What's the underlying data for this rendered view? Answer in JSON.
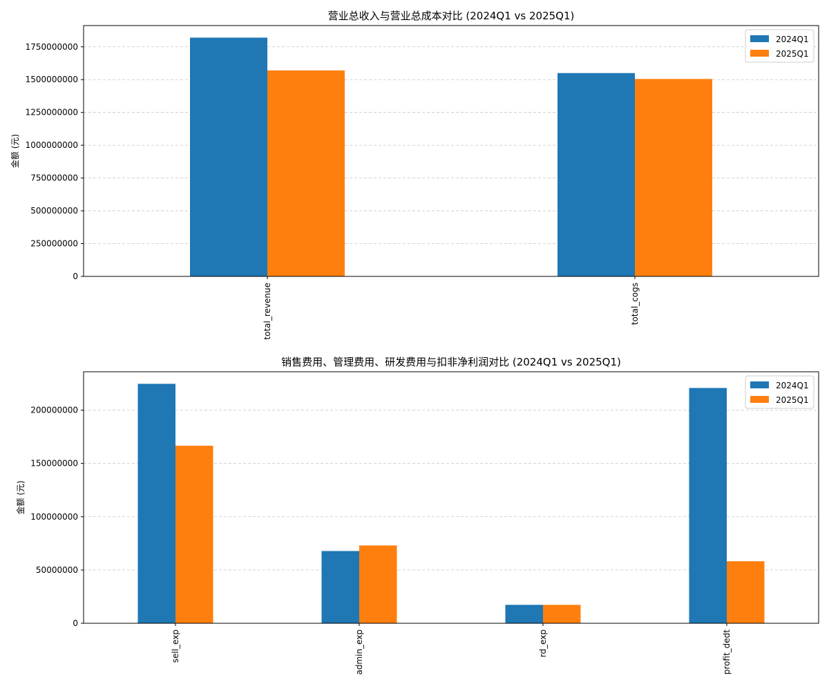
{
  "colors": {
    "series_0": "#1f77b4",
    "series_1": "#ff7f0e",
    "grid": "#b0b0b0",
    "axis": "#000000"
  },
  "chart_data": [
    {
      "type": "bar",
      "title": "营业总收入与营业总成本对比 (2024Q1 vs 2025Q1)",
      "xlabel": "",
      "ylabel": "金额 (元)",
      "categories": [
        "total_revenue",
        "total_cogs"
      ],
      "series": [
        {
          "name": "2024Q1",
          "values": [
            1820000000,
            1550000000
          ]
        },
        {
          "name": "2025Q1",
          "values": [
            1570000000,
            1505000000
          ]
        }
      ],
      "ylim": [
        0,
        1912000000
      ],
      "yticks": [
        0,
        250000000,
        500000000,
        750000000,
        1000000000,
        1250000000,
        1500000000,
        1750000000
      ],
      "ytick_labels": [
        "0",
        "250000000",
        "500000000",
        "750000000",
        "1000000000",
        "1250000000",
        "1500000000",
        "1750000000"
      ],
      "grid": true,
      "legend": "top-right"
    },
    {
      "type": "bar",
      "title": "销售费用、管理费用、研发费用与扣非净利润对比 (2024Q1 vs 2025Q1)",
      "xlabel": "",
      "ylabel": "金额 (元)",
      "categories": [
        "sell_exp",
        "admin_exp",
        "rd_exp",
        "profit_dedt"
      ],
      "series": [
        {
          "name": "2024Q1",
          "values": [
            224700000,
            67800000,
            17300000,
            220800000
          ]
        },
        {
          "name": "2025Q1",
          "values": [
            166600000,
            73000000,
            17300000,
            58200000
          ]
        }
      ],
      "ylim": [
        0,
        236000000
      ],
      "yticks": [
        0,
        50000000,
        100000000,
        150000000,
        200000000
      ],
      "ytick_labels": [
        "0",
        "50000000",
        "100000000",
        "150000000",
        "200000000"
      ],
      "grid": true,
      "legend": "top-right"
    }
  ]
}
